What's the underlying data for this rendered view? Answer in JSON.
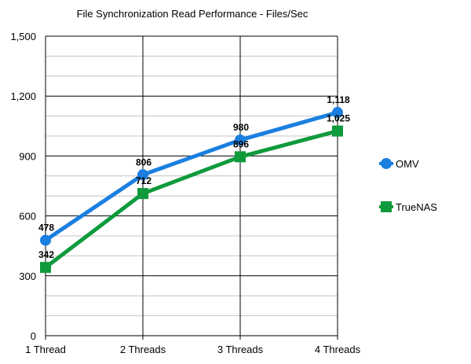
{
  "chart_data": {
    "type": "line",
    "title": "File Synchronization Read Performance - Files/Sec",
    "categories": [
      "1 Thread",
      "2 Threads",
      "3 Threads",
      "4 Threads"
    ],
    "ylim": [
      0,
      1500
    ],
    "yticks": [
      0,
      300,
      600,
      900,
      1200,
      1500
    ],
    "ytick_labels": [
      "0",
      "300",
      "600",
      "900",
      "1,200",
      "1,500"
    ],
    "grid": true,
    "legend_position": "right",
    "series": [
      {
        "name": "OMV",
        "values": [
          478,
          806,
          980,
          1118
        ],
        "value_labels": [
          "478",
          "806",
          "980",
          "1,118"
        ],
        "color": "#1a7fe0",
        "marker": "circle"
      },
      {
        "name": "TrueNAS",
        "values": [
          342,
          712,
          896,
          1025
        ],
        "value_labels": [
          "342",
          "712",
          "896",
          "1,025"
        ],
        "color": "#0f9a3c",
        "marker": "square"
      }
    ]
  }
}
